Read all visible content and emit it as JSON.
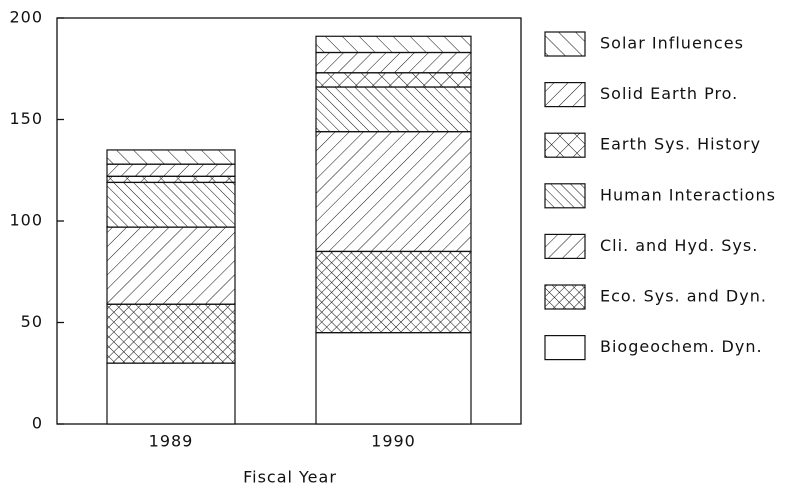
{
  "chart_data": {
    "type": "stacked-bar",
    "x_label": "Fiscal Year",
    "categories": [
      "1989",
      "1990"
    ],
    "series": [
      {
        "name": "Biogeochem. Dyn.",
        "color": "#ffffff",
        "hatch": "none",
        "values": [
          30,
          45
        ]
      },
      {
        "name": "Eco. Sys. and Dyn.",
        "color": "#ffffff",
        "hatch": "cross-dense",
        "values": [
          29,
          40
        ]
      },
      {
        "name": "Cli. and Hyd. Sys.",
        "color": "#ffffff",
        "hatch": "forward",
        "values": [
          38,
          59
        ]
      },
      {
        "name": "Human Interactions",
        "color": "#ffffff",
        "hatch": "back-dense",
        "values": [
          22,
          22
        ]
      },
      {
        "name": "Earth Sys. History",
        "color": "#ffffff",
        "hatch": "cross",
        "values": [
          3,
          7
        ]
      },
      {
        "name": "Solid Earth Pro.",
        "color": "#ffffff",
        "hatch": "forward",
        "values": [
          6,
          10
        ]
      },
      {
        "name": "Solar Influences",
        "color": "#ffffff",
        "hatch": "back",
        "values": [
          7,
          8
        ]
      }
    ],
    "ylim": [
      0,
      200
    ],
    "yticks": [
      0,
      50,
      100,
      150,
      200
    ],
    "legend": "right"
  }
}
